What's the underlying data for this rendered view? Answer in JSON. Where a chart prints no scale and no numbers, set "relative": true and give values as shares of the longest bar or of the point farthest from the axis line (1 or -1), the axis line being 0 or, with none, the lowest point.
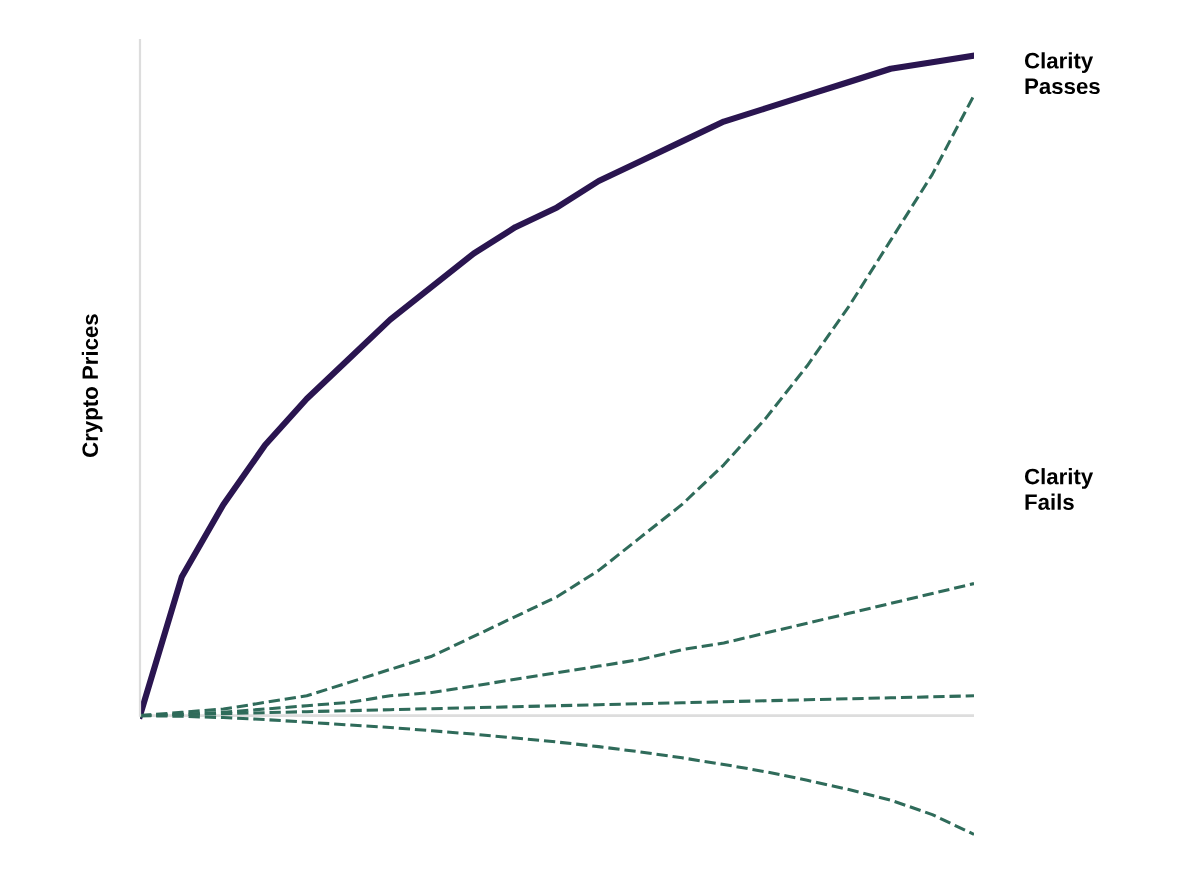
{
  "chart_data": {
    "type": "line",
    "relative": true,
    "ylabel": "Crypto Prices",
    "tick_labels": false,
    "categories": [
      null,
      null,
      null,
      null,
      null,
      null,
      null,
      null,
      null,
      null,
      null,
      null,
      null,
      null,
      null,
      null,
      null,
      null,
      null,
      null,
      null
    ],
    "series": [
      {
        "color": "#2a1550",
        "line_style": "solid",
        "values": [
          0,
          0.21,
          0.32,
          0.41,
          0.48,
          0.54,
          0.6,
          0.65,
          0.7,
          0.74,
          0.77,
          0.81,
          0.84,
          0.87,
          0.9,
          0.92,
          0.94,
          0.96,
          0.98,
          0.99,
          1
        ]
      },
      {
        "color": "#2f6b5a",
        "line_style": "dashed",
        "values": [
          0,
          0.005,
          0.01,
          0.02,
          0.03,
          0.05,
          0.07,
          0.09,
          0.12,
          0.15,
          0.18,
          0.22,
          0.27,
          0.32,
          0.38,
          0.45,
          0.53,
          0.62,
          0.72,
          0.82,
          0.94
        ]
      },
      {
        "color": "#2f6b5a",
        "line_style": "dashed",
        "values": [
          0,
          0.002,
          0.005,
          0.01,
          0.015,
          0.02,
          0.03,
          0.035,
          0.045,
          0.055,
          0.065,
          0.075,
          0.085,
          0.1,
          0.11,
          0.125,
          0.14,
          0.155,
          0.17,
          0.185,
          0.2
        ]
      },
      {
        "color": "#2f6b5a",
        "line_style": "dashed",
        "values": [
          0,
          0.0015,
          0.003,
          0.0045,
          0.006,
          0.0075,
          0.009,
          0.0105,
          0.012,
          0.0135,
          0.015,
          0.0165,
          0.018,
          0.0195,
          0.021,
          0.0225,
          0.024,
          0.0255,
          0.027,
          0.0285,
          0.03
        ]
      },
      {
        "color": "#2f6b5a",
        "line_style": "dashed",
        "values": [
          0,
          -0.001,
          -0.003,
          -0.006,
          -0.01,
          -0.014,
          -0.018,
          -0.023,
          -0.028,
          -0.034,
          -0.04,
          -0.047,
          -0.055,
          -0.064,
          -0.074,
          -0.085,
          -0.098,
          -0.112,
          -0.128,
          -0.15,
          -0.18
        ]
      }
    ],
    "annotations": [
      "Clarity\nPasses",
      "Clarity\nFails"
    ]
  }
}
